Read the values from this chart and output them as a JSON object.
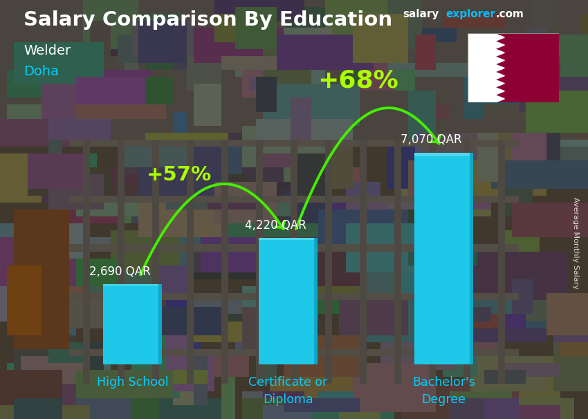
{
  "title": "Salary Comparison By Education",
  "subtitle_job": "Welder",
  "subtitle_city": "Doha",
  "ylabel": "Average Monthly Salary",
  "website_salary": "salary",
  "website_explorer": "explorer",
  "website_com": ".com",
  "categories": [
    "High School",
    "Certificate or\nDiploma",
    "Bachelor's\nDegree"
  ],
  "values": [
    2690,
    4220,
    7070
  ],
  "value_labels": [
    "2,690 QAR",
    "4,220 QAR",
    "7,070 QAR"
  ],
  "bar_color": "#1EC8E8",
  "bar_color_side": "#0FA8C8",
  "bar_color_top": "#50D8F0",
  "pct_labels": [
    "+57%",
    "+68%"
  ],
  "pct_color": "#AAFF00",
  "arrow_color": "#44EE00",
  "title_color": "#FFFFFF",
  "subtitle_job_color": "#FFFFFF",
  "subtitle_city_color": "#00CFFF",
  "value_label_color": "#FFFFFF",
  "xlabel_color": "#00CFFF",
  "bg_dark": "#1A2030",
  "ylim": [
    0,
    9500
  ],
  "bar_width": 0.38,
  "qatar_flag_color_maroon": "#8D0034",
  "qatar_flag_color_white": "#FFFFFF",
  "website_salary_color": "#FFFFFF",
  "website_explorer_color": "#00BFFF",
  "website_com_color": "#FFFFFF"
}
